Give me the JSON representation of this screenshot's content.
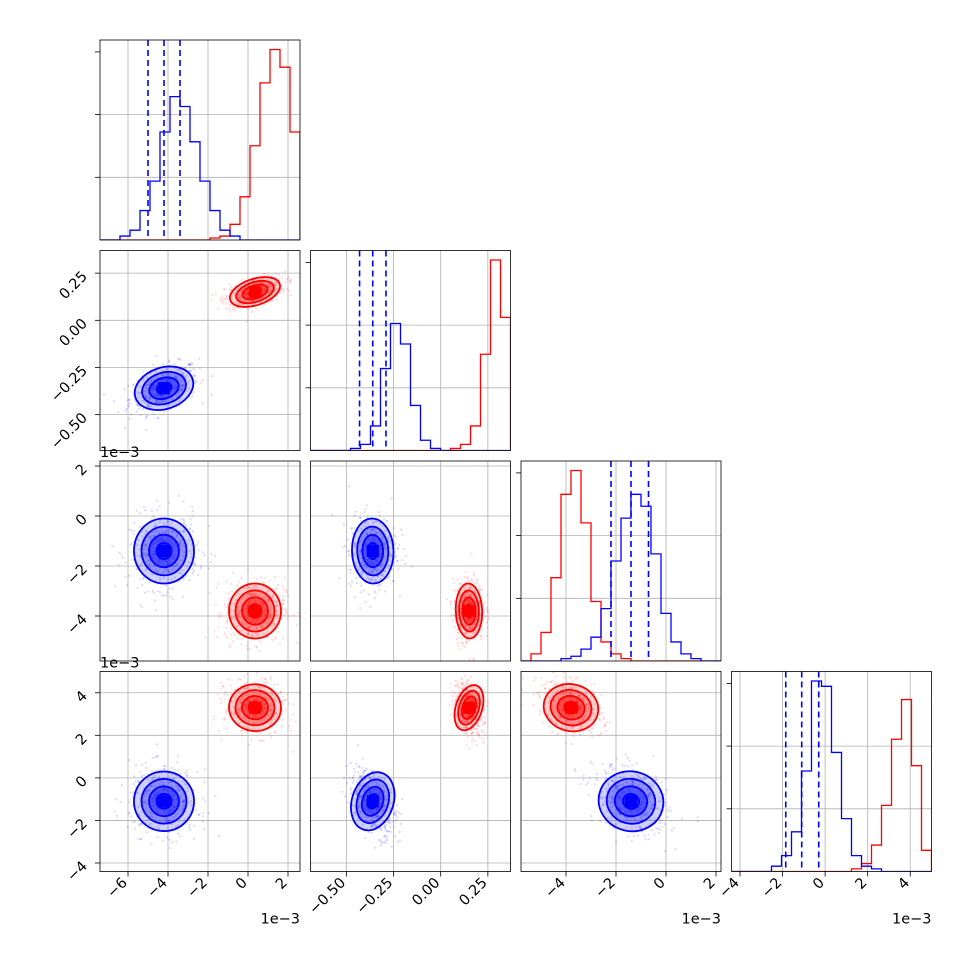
{
  "chart_data": {
    "type": "scatter",
    "title": "",
    "layout": "corner plot (lower-triangular matrix of 4 parameters)",
    "colors": {
      "blue": "#0000ff",
      "red": "#ff0000"
    },
    "grid": true,
    "legend": "none",
    "params": [
      {
        "range": [
          -7.4,
          2.6
        ],
        "ticks": [
          -6,
          -4,
          -2,
          0,
          2
        ],
        "tick_labels": [
          "−6",
          "−4",
          "−2",
          "0",
          "2"
        ],
        "offset_label": "1e−3"
      },
      {
        "range": [
          -0.69,
          0.37
        ],
        "ticks": [
          -0.5,
          -0.25,
          0.0,
          0.25
        ],
        "tick_labels": [
          "−0.50",
          "−0.25",
          "0.00",
          "0.25"
        ],
        "offset_label": ""
      },
      {
        "range": [
          -5.8,
          2.2
        ],
        "ticks": [
          -4,
          -2,
          0,
          2
        ],
        "tick_labels": [
          "−4",
          "−2",
          "0",
          "2"
        ],
        "offset_label": "1e−3"
      },
      {
        "range": [
          -4.4,
          5.0
        ],
        "ticks": [
          -4,
          -2,
          0,
          2,
          4
        ],
        "tick_labels": [
          "−4",
          "−2",
          "0",
          "2",
          "4"
        ],
        "offset_label": "1e−3"
      }
    ],
    "series": [
      {
        "color": "#0000ff",
        "mean": [
          -4.2,
          -0.36,
          -1.4,
          -1.1
        ],
        "std": [
          0.75,
          0.055,
          0.65,
          0.7
        ],
        "quantiles": [
          [
            -5.0,
            -4.2,
            -3.4
          ],
          [
            -0.43,
            -0.36,
            -0.29
          ],
          [
            -2.2,
            -1.4,
            -0.7
          ],
          [
            -1.85,
            -1.1,
            -0.3
          ]
        ]
      },
      {
        "color": "#ff0000",
        "mean": [
          0.35,
          0.15,
          -3.8,
          3.3
        ],
        "std": [
          0.65,
          0.035,
          0.55,
          0.55
        ]
      }
    ],
    "histograms": [
      {
        "bins": [
          -7.4,
          2.6
        ],
        "blue": [
          0,
          0,
          2,
          5,
          15,
          30,
          55,
          73,
          68,
          50,
          30,
          15,
          5,
          2,
          0,
          0,
          0,
          0,
          0,
          0
        ],
        "red": [
          0,
          0,
          0,
          0,
          0,
          0,
          0,
          0,
          0,
          0,
          0,
          1,
          2,
          8,
          22,
          48,
          80,
          97,
          88,
          55
        ]
      },
      {
        "bins": [
          -0.69,
          0.37
        ],
        "blue": [
          0,
          0,
          0,
          0,
          1,
          3,
          12,
          40,
          62,
          52,
          22,
          5,
          1,
          0,
          0,
          0,
          0,
          0,
          0,
          0
        ],
        "red": [
          0,
          0,
          0,
          0,
          0,
          0,
          0,
          0,
          0,
          0,
          0,
          0,
          0,
          0,
          1,
          3,
          12,
          47,
          93,
          65
        ]
      },
      {
        "bins": [
          -5.8,
          2.2
        ],
        "blue": [
          0,
          0,
          0,
          0,
          1,
          2,
          5,
          10,
          22,
          42,
          60,
          70,
          65,
          45,
          20,
          8,
          3,
          1,
          0,
          0
        ],
        "red": [
          0,
          3,
          12,
          35,
          70,
          80,
          58,
          25,
          8,
          3,
          1,
          0,
          0,
          0,
          0,
          0,
          0,
          0,
          0,
          0
        ]
      },
      {
        "bins": [
          -4.4,
          5.0
        ],
        "blue": [
          0,
          0,
          0,
          0,
          2,
          6,
          15,
          38,
          72,
          70,
          45,
          20,
          6,
          2,
          1,
          0,
          0,
          0,
          0,
          0
        ],
        "red": [
          0,
          0,
          0,
          0,
          0,
          0,
          0,
          0,
          0,
          0,
          0,
          0,
          1,
          3,
          10,
          25,
          50,
          65,
          40,
          8
        ]
      }
    ]
  }
}
